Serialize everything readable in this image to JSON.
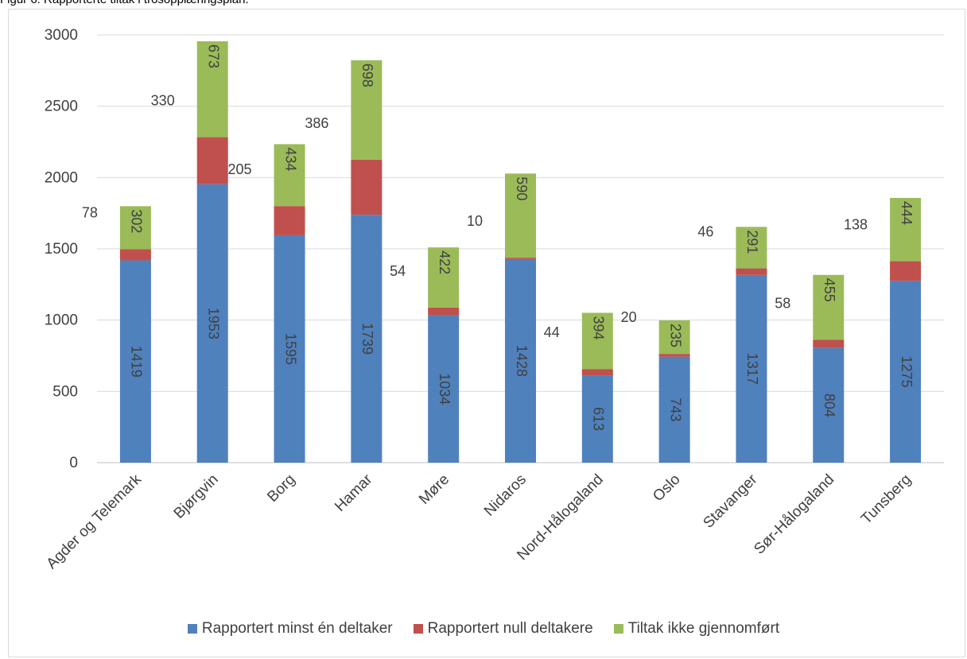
{
  "caption": "Figur 6: Rapporterte tiltak i trosopplæringsplan.",
  "chart_data": {
    "type": "bar",
    "stacked": true,
    "categories": [
      "Agder og Telemark",
      "Bjørgvin",
      "Borg",
      "Hamar",
      "Møre",
      "Nidaros",
      "Nord-Hålogaland",
      "Oslo",
      "Stavanger",
      "Sør-Hålogaland",
      "Tunsberg"
    ],
    "series": [
      {
        "name": "Rapportert minst én deltaker",
        "color": "#4f81bd",
        "values": [
          1419,
          1953,
          1595,
          1739,
          1034,
          1428,
          613,
          743,
          1317,
          804,
          1275
        ]
      },
      {
        "name": "Rapportert null deltakere",
        "color": "#c0504d",
        "values": [
          78,
          330,
          205,
          386,
          54,
          10,
          44,
          20,
          46,
          58,
          138
        ]
      },
      {
        "name": "Tiltak ikke gjennomført",
        "color": "#9bbb59",
        "values": [
          302,
          673,
          434,
          698,
          422,
          590,
          394,
          235,
          291,
          455,
          444
        ]
      }
    ],
    "ylim": [
      0,
      3000
    ],
    "yticks": [
      "0",
      "500",
      "1000",
      "1500",
      "2000",
      "2500",
      "3000"
    ],
    "grid": true,
    "legend_position": "bottom",
    "xlabel": "",
    "ylabel": ""
  }
}
